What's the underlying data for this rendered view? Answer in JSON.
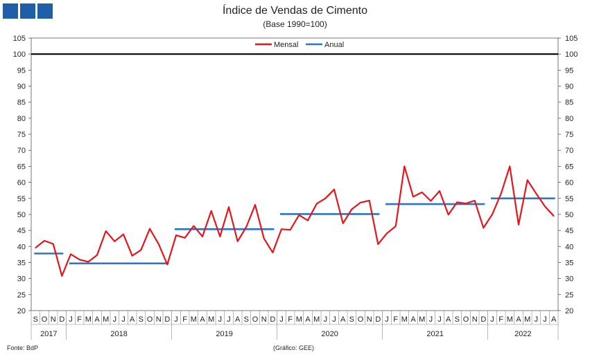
{
  "header": {
    "title": "Índice de Vendas de Cimento",
    "subtitle": "(Base 1990=100)",
    "logo_icon": "bdp-logo-squares"
  },
  "footer": {
    "source": "Fonte: BdP",
    "credit": "(Gráfico: GEE)"
  },
  "chart_data": {
    "type": "line",
    "title": "Índice de Vendas de Cimento",
    "subtitle": "(Base 1990=100)",
    "ylim": [
      20,
      105
    ],
    "y_ticks": [
      20,
      25,
      30,
      35,
      40,
      45,
      50,
      55,
      60,
      65,
      70,
      75,
      80,
      85,
      90,
      95,
      100,
      105
    ],
    "reference_line": 100,
    "grid": false,
    "legend_position": "top-center",
    "month_labels": [
      "S",
      "O",
      "N",
      "D",
      "J",
      "F",
      "M",
      "A",
      "M",
      "J",
      "J",
      "A",
      "S",
      "O",
      "N",
      "D",
      "J",
      "F",
      "M",
      "A",
      "M",
      "J",
      "J",
      "A",
      "S",
      "O",
      "N",
      "D",
      "J",
      "F",
      "M",
      "A",
      "M",
      "J",
      "J",
      "A",
      "S",
      "O",
      "N",
      "D",
      "J",
      "F",
      "M",
      "A",
      "M",
      "J",
      "J",
      "A",
      "S",
      "O",
      "N",
      "D",
      "J",
      "F",
      "M",
      "A",
      "M",
      "J",
      "J",
      "A"
    ],
    "year_groups": [
      {
        "label": "2017",
        "count": 4
      },
      {
        "label": "2018",
        "count": 12
      },
      {
        "label": "2019",
        "count": 12
      },
      {
        "label": "2020",
        "count": 12
      },
      {
        "label": "2021",
        "count": 12
      },
      {
        "label": "2022",
        "count": 8
      }
    ],
    "series": [
      {
        "name": "Mensal",
        "color": "#e8141b",
        "values": [
          39.6,
          41.8,
          40.8,
          30.8,
          37.6,
          35.9,
          35.2,
          37.3,
          44.8,
          41.6,
          43.8,
          37.1,
          38.9,
          45.5,
          40.8,
          34.4,
          43.5,
          42.7,
          46.4,
          43.1,
          51.1,
          43.1,
          52.3,
          41.6,
          46.1,
          53.0,
          42.5,
          38.1,
          45.4,
          45.2,
          49.8,
          48.1,
          53.3,
          55.0,
          57.8,
          47.2,
          51.6,
          53.7,
          54.3,
          40.7,
          44.1,
          46.3,
          65.0,
          55.5,
          56.9,
          54.2,
          57.3,
          49.9,
          53.8,
          53.4,
          54.3,
          45.8,
          50.0,
          56.5,
          65.0,
          46.8,
          60.7,
          56.5,
          52.5,
          49.5
        ]
      },
      {
        "name": "Anual",
        "color": "#2a76c2",
        "segments": [
          {
            "year": "2017",
            "value": 37.8
          },
          {
            "year": "2018",
            "value": 34.7
          },
          {
            "year": "2019",
            "value": 45.4
          },
          {
            "year": "2020",
            "value": 50.1
          },
          {
            "year": "2021",
            "value": 53.2
          },
          {
            "year": "2022",
            "value": 55.0
          }
        ]
      }
    ]
  }
}
